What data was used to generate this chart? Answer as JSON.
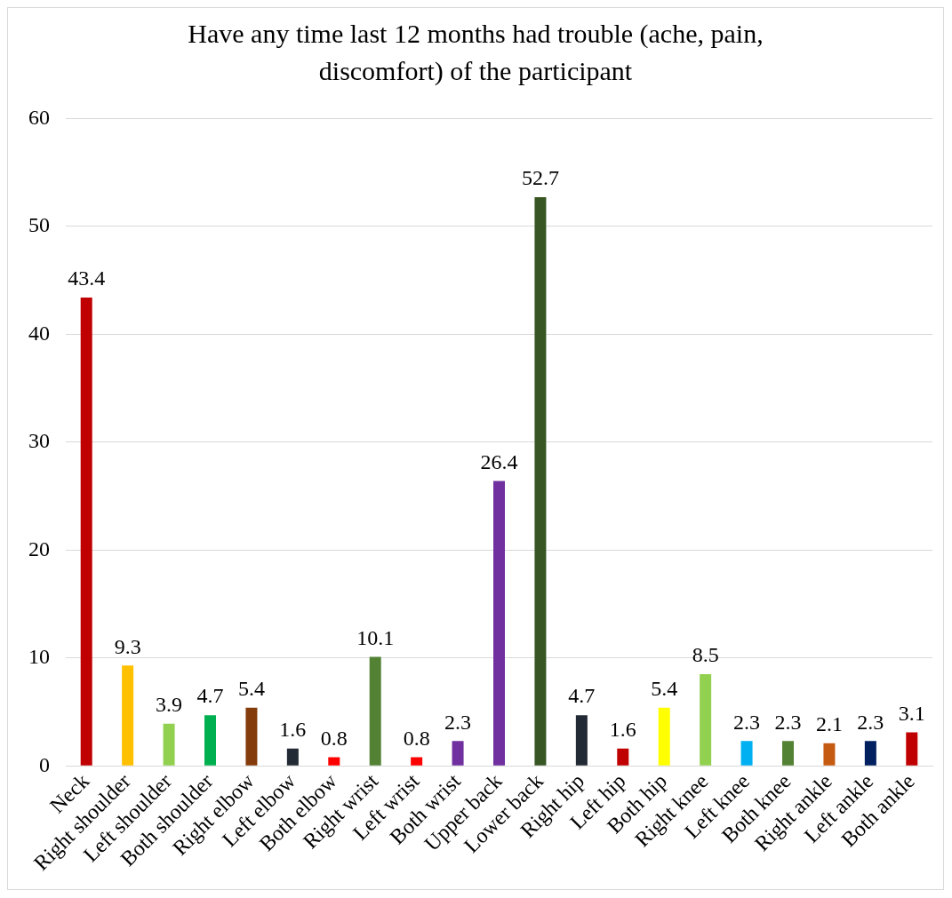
{
  "chart_data": {
    "type": "bar",
    "title": "Have any time last 12 months had trouble (ache, pain, discomfort) of the participant",
    "categories": [
      "Neck",
      "Right shoulder",
      "Left shoulder",
      "Both shoulder",
      "Right elbow",
      "Left elbow",
      "Both elbow",
      "Right wrist",
      "Left wrist",
      "Both wrist",
      "Upper back",
      "Lower back",
      "Right hip",
      "Left hip",
      "Both hip",
      "Right knee",
      "Left knee",
      "Both knee",
      "Right ankle",
      "Left ankle",
      "Both ankle"
    ],
    "values": [
      43.4,
      9.3,
      3.9,
      4.7,
      5.4,
      1.6,
      0.8,
      10.1,
      0.8,
      2.3,
      26.4,
      52.7,
      4.7,
      1.6,
      5.4,
      8.5,
      2.3,
      2.3,
      2.1,
      2.3,
      3.1
    ],
    "colors": [
      "#c00000",
      "#ffc000",
      "#92d050",
      "#00b050",
      "#843c0c",
      "#222a35",
      "#ff0000",
      "#548235",
      "#ff0000",
      "#7030a0",
      "#7030a0",
      "#375623",
      "#222a35",
      "#c00000",
      "#ffff00",
      "#92d050",
      "#00b0f0",
      "#548235",
      "#c55a11",
      "#002060",
      "#c00000"
    ],
    "ylim": [
      0,
      60
    ],
    "yticks": [
      0,
      10,
      20,
      30,
      40,
      50,
      60
    ],
    "grid": "y",
    "data_labels": true
  }
}
